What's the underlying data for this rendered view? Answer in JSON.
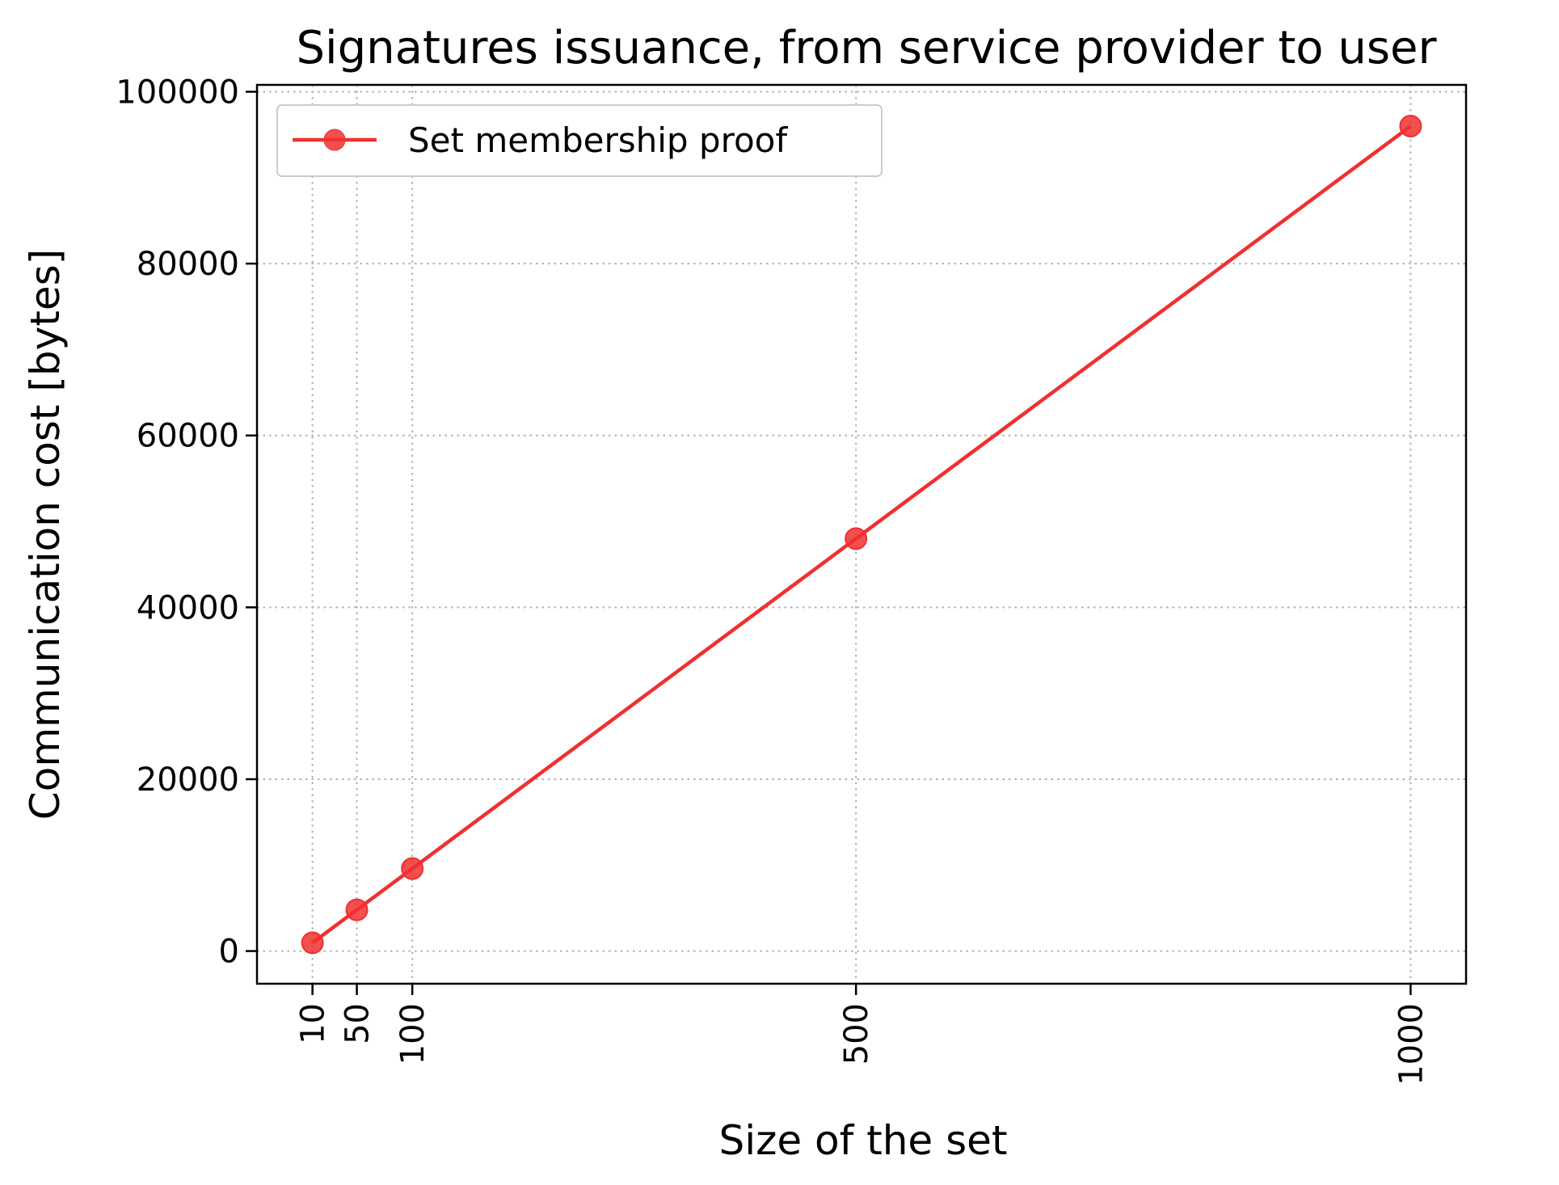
{
  "chart_data": {
    "type": "line",
    "title": "Signatures issuance, from service provider to user",
    "xlabel": "Size of the set",
    "ylabel": "Communication cost [bytes]",
    "x": [
      10,
      50,
      100,
      500,
      1000
    ],
    "x_tick_labels": [
      "10",
      "50",
      "100",
      "500",
      "1000"
    ],
    "y_tick_values": [
      0,
      20000,
      40000,
      60000,
      80000,
      100000
    ],
    "y_tick_labels": [
      "0",
      "20000",
      "40000",
      "60000",
      "80000",
      "100000"
    ],
    "xlim": [
      -40,
      1050
    ],
    "ylim": [
      -3800,
      100800
    ],
    "grid": true,
    "legend_position": "top-left",
    "series": [
      {
        "name": "Set membership proof",
        "color": "#f03030",
        "marker": "circle",
        "values": [
          960,
          4800,
          9600,
          48000,
          96000
        ]
      }
    ]
  }
}
